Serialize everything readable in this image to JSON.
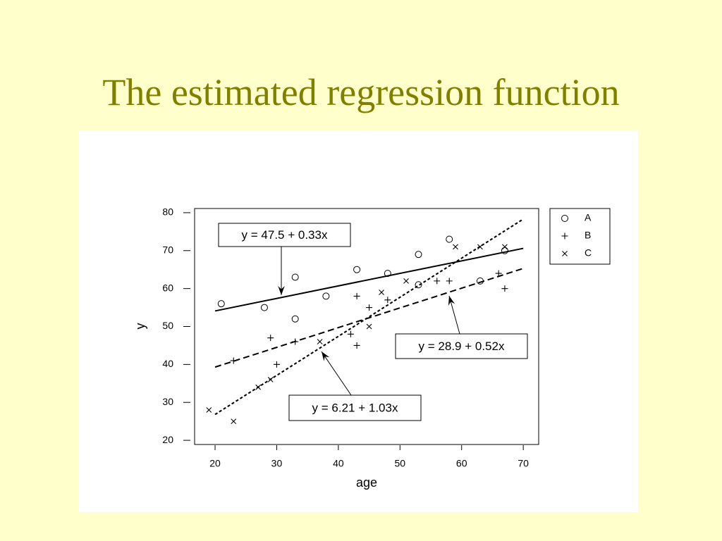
{
  "title": "The estimated regression function",
  "chart_data": {
    "type": "scatter",
    "x_label": "age",
    "y_label": "y",
    "xlim": [
      16.68,
      72.5
    ],
    "ylim": [
      18.9,
      81.1
    ],
    "xticks": [
      20,
      30,
      40,
      50,
      60,
      70
    ],
    "yticks": [
      20,
      30,
      40,
      50,
      60,
      70,
      80
    ],
    "legend": "outside-right",
    "series": [
      {
        "name": "A",
        "marker": "circle",
        "color": "#000000",
        "x": [
          21,
          28,
          33,
          33,
          38,
          43,
          48,
          53,
          53,
          58,
          63,
          67
        ],
        "values": [
          56,
          55,
          63,
          52,
          58,
          65,
          64,
          69,
          61,
          73,
          62,
          70
        ]
      },
      {
        "name": "B",
        "marker": "plus",
        "color": "#000000",
        "x": [
          23,
          29,
          30,
          33,
          42,
          43,
          43,
          45,
          48,
          56,
          58,
          66,
          67
        ],
        "values": [
          41,
          47,
          40,
          46,
          48,
          58,
          45,
          55,
          57,
          62,
          62,
          64,
          60
        ]
      },
      {
        "name": "C",
        "marker": "cross",
        "color": "#000000",
        "x": [
          19,
          23,
          27,
          29,
          37,
          45,
          47,
          51,
          59,
          63,
          67
        ],
        "values": [
          28,
          25,
          34,
          36,
          46,
          50,
          59,
          62,
          71,
          71,
          71
        ]
      }
    ],
    "fits": [
      {
        "label": "y = 47.5 + 0.33x",
        "intercept": 47.5,
        "slope": 0.33,
        "x_range": [
          20,
          70
        ],
        "dash": "solid"
      },
      {
        "label": "y = 28.9 + 0.52x",
        "intercept": 28.9,
        "slope": 0.52,
        "x_range": [
          20,
          70
        ],
        "dash": "dashed"
      },
      {
        "label": "y = 6.21 + 1.03x",
        "intercept": 6.21,
        "slope": 1.03,
        "x_range": [
          20,
          70
        ],
        "dash": "dotted"
      }
    ]
  }
}
